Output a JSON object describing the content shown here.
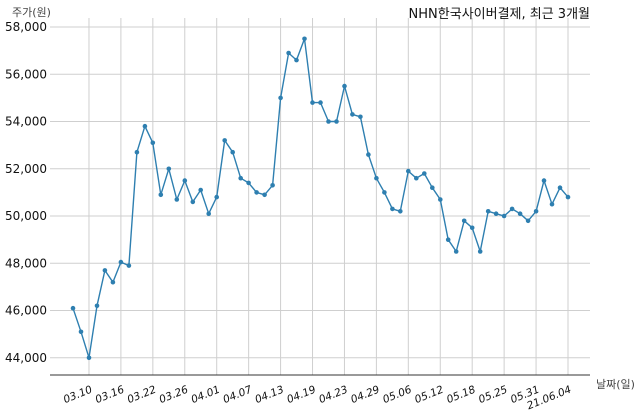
{
  "chart_data": {
    "type": "line",
    "title": "NHN한국사이버결제, 최근 3개월",
    "ylabel": "주가(원)",
    "xlabel": "날짜(일)",
    "ylim": [
      43300,
      58000
    ],
    "yticks": [
      44000,
      46000,
      48000,
      50000,
      52000,
      54000,
      56000,
      58000
    ],
    "ytick_labels": [
      "44,000",
      "46,000",
      "48,000",
      "50,000",
      "52,000",
      "54,000",
      "56,000",
      "58,000"
    ],
    "xtick_labels": [
      "03.10",
      "03.16",
      "03.22",
      "03.26",
      "04.01",
      "04.07",
      "04.13",
      "04.19",
      "04.23",
      "04.29",
      "05.06",
      "05.12",
      "05.18",
      "05.25",
      "05.31",
      "21.06.04"
    ],
    "xtick_index": [
      2,
      6,
      10,
      14,
      18,
      22,
      26,
      30,
      34,
      38,
      42,
      46,
      50,
      54,
      58,
      62
    ],
    "grid": true,
    "color": "#2e7fb0",
    "series": [
      {
        "values": [
          46100,
          45100,
          44000,
          46200,
          47700,
          47200,
          48050,
          47900,
          52700,
          53800,
          53100,
          50900,
          52000,
          50700,
          51500,
          50600,
          51100,
          50100,
          50800,
          53200,
          52700,
          51600,
          51400,
          51000,
          50900,
          51300,
          55000,
          56900,
          56600,
          57500,
          54800,
          54800,
          54000,
          54000,
          55500,
          54300,
          54200,
          52600,
          51600,
          51000,
          50300,
          50200,
          51900,
          51600,
          51800,
          51200,
          50700,
          49000,
          48500,
          49800,
          49500,
          48500,
          50200,
          50100,
          50000,
          50300,
          50100,
          49800,
          50200,
          51500,
          50500,
          51200,
          50800
        ]
      }
    ]
  }
}
